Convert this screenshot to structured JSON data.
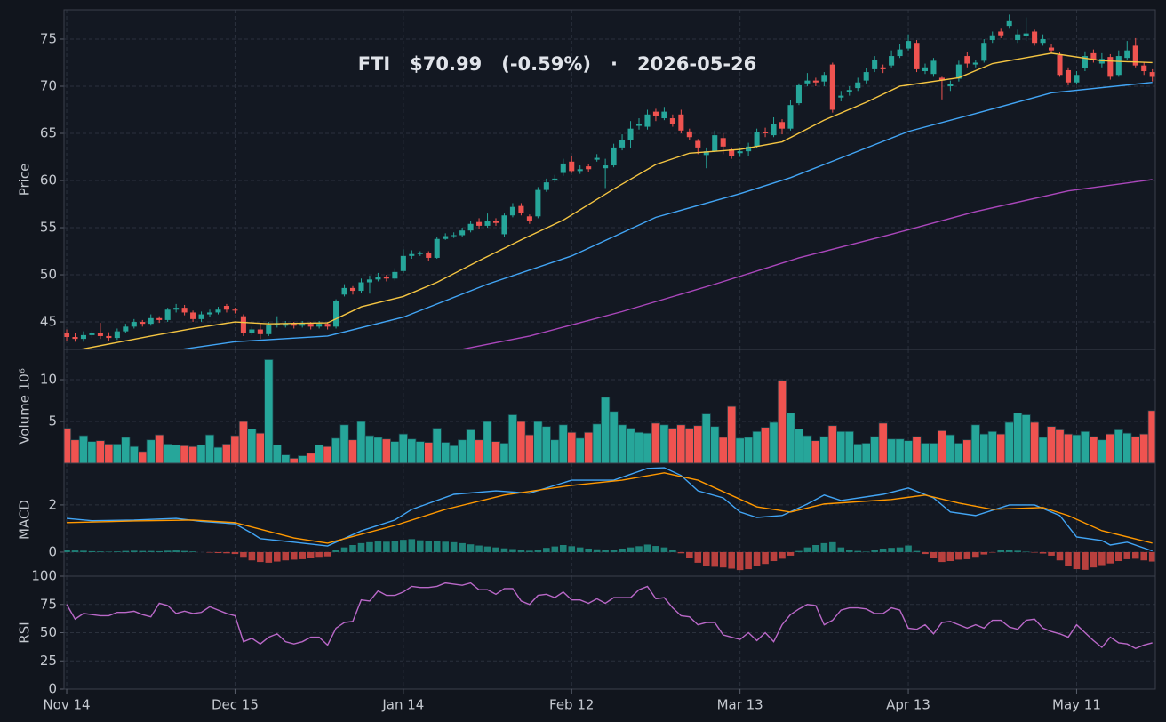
{
  "chart_data": [
    {
      "type": "candlestick",
      "title": [
        "FTI",
        "$70.99",
        "(-0.59%)",
        "·",
        "2026-05-26"
      ],
      "ylabel": "Price",
      "ylim": [
        42.08,
        78.11
      ],
      "yticks": [
        45,
        50,
        55,
        60,
        65,
        70,
        75
      ],
      "grid": true,
      "up_color": "#26a69a",
      "down_color": "#ef5350",
      "open": [
        43.8,
        43.4,
        43.2,
        43.6,
        43.8,
        43.5,
        43.3,
        44.0,
        44.5,
        45.0,
        44.8,
        45.4,
        45.2,
        46.3,
        46.5,
        46.0,
        45.3,
        45.8,
        46.0,
        46.7,
        46.3,
        45.6,
        43.8,
        44.2,
        43.7,
        44.7,
        44.6,
        44.8,
        44.6,
        44.8,
        44.5,
        44.8,
        44.5,
        47.9,
        48.6,
        48.3,
        49.2,
        49.5,
        49.8,
        49.6,
        50.4,
        52.0,
        52.2,
        52.3,
        51.8,
        53.8,
        54.1,
        54.2,
        54.7,
        55.6,
        55.2,
        55.7,
        54.3,
        56.3,
        57.3,
        56.2,
        56.2,
        59.0,
        60.0,
        60.8,
        62.0,
        61.0,
        61.5,
        62.2,
        61.3,
        61.6,
        63.5,
        64.3,
        65.8,
        65.7,
        67.3,
        66.6,
        66.6,
        67.0,
        65.2,
        64.2,
        62.7,
        63.1,
        64.5,
        63.3,
        62.9,
        63.1,
        63.6,
        65.1,
        64.8,
        66.2,
        65.5,
        68.2,
        70.3,
        70.6,
        70.5,
        72.3,
        68.8,
        69.4,
        69.8,
        70.6,
        71.8,
        72.0,
        72.2,
        73.2,
        74.0,
        74.6,
        71.6,
        71.3,
        70.9,
        70.0,
        70.8,
        73.2,
        72.3,
        72.7,
        74.9,
        75.8,
        76.4,
        74.9,
        75.3,
        75.8,
        74.6,
        74.1,
        73.3,
        71.7,
        70.4,
        71.9,
        73.5,
        72.4,
        73.1,
        71.2,
        73.0,
        74.3,
        72.2,
        71.5
      ],
      "high": [
        44.2,
        43.8,
        44.0,
        44.1,
        44.9,
        43.9,
        44.3,
        44.8,
        45.3,
        45.2,
        45.8,
        45.6,
        46.5,
        46.9,
        46.8,
        46.2,
        46.1,
        46.3,
        46.6,
        46.9,
        46.5,
        45.8,
        44.5,
        44.8,
        45.0,
        45.6,
        45.1,
        45.0,
        45.1,
        45.0,
        45.1,
        45.0,
        47.4,
        49.0,
        48.8,
        49.6,
        49.9,
        50.2,
        50.0,
        50.7,
        52.7,
        52.6,
        52.5,
        52.5,
        54.0,
        54.4,
        54.5,
        55.0,
        55.7,
        56.0,
        56.5,
        56.0,
        56.5,
        57.6,
        57.6,
        56.4,
        59.3,
        60.2,
        60.6,
        62.3,
        62.6,
        61.6,
        61.7,
        62.8,
        62.3,
        63.9,
        64.9,
        66.3,
        66.6,
        67.5,
        67.6,
        67.8,
        67.0,
        67.5,
        65.5,
        64.4,
        63.5,
        65.3,
        65.0,
        63.5,
        63.5,
        64.0,
        65.5,
        65.6,
        66.7,
        66.5,
        68.5,
        70.3,
        71.4,
        70.9,
        71.5,
        72.5,
        69.5,
        70.0,
        70.9,
        71.9,
        73.2,
        72.3,
        73.8,
        74.5,
        75.5,
        74.9,
        72.4,
        73.0,
        71.0,
        70.6,
        72.7,
        73.6,
        72.8,
        75.0,
        75.8,
        76.1,
        77.6,
        76.0,
        77.3,
        76.0,
        75.5,
        74.5,
        73.6,
        72.0,
        71.6,
        73.7,
        73.9,
        73.5,
        73.4,
        73.8,
        74.8,
        75.1,
        72.5,
        71.8
      ],
      "low": [
        43.0,
        42.9,
        42.9,
        43.3,
        43.2,
        43.0,
        43.1,
        43.8,
        44.3,
        44.5,
        44.6,
        44.9,
        45.0,
        46.0,
        45.7,
        45.0,
        45.0,
        45.5,
        45.8,
        46.0,
        45.9,
        43.5,
        43.6,
        43.2,
        43.5,
        44.4,
        44.4,
        44.3,
        44.4,
        44.2,
        44.3,
        44.2,
        44.3,
        47.7,
        47.9,
        48.1,
        48.0,
        49.3,
        49.3,
        49.4,
        50.2,
        51.7,
        52.0,
        51.5,
        51.7,
        53.7,
        53.9,
        54.0,
        54.5,
        54.9,
        55.0,
        55.2,
        54.0,
        56.1,
        56.3,
        55.4,
        56.0,
        58.8,
        59.8,
        60.5,
        60.8,
        60.7,
        60.9,
        62.0,
        59.2,
        61.4,
        63.2,
        63.4,
        65.4,
        65.4,
        66.3,
        66.4,
        65.7,
        65.0,
        64.3,
        62.8,
        61.3,
        63.0,
        62.8,
        62.3,
        62.5,
        62.6,
        63.4,
        64.6,
        64.6,
        64.9,
        65.3,
        68.0,
        70.0,
        70.0,
        70.0,
        67.2,
        68.4,
        69.0,
        69.5,
        70.3,
        71.5,
        71.4,
        72.0,
        73.0,
        73.8,
        71.5,
        71.3,
        71.0,
        68.6,
        69.5,
        70.5,
        72.0,
        72.0,
        72.5,
        74.6,
        75.1,
        76.1,
        74.6,
        74.8,
        74.3,
        74.3,
        73.5,
        71.0,
        70.1,
        70.2,
        71.6,
        72.5,
        72.0,
        70.7,
        71.0,
        72.8,
        72.0,
        71.2,
        70.5
      ],
      "close": [
        43.4,
        43.2,
        43.6,
        43.8,
        43.5,
        43.3,
        44.0,
        44.5,
        45.0,
        44.8,
        45.4,
        45.2,
        46.3,
        46.5,
        46.0,
        45.3,
        45.8,
        46.0,
        46.3,
        46.3,
        46.2,
        43.8,
        44.2,
        43.7,
        44.7,
        44.8,
        44.8,
        44.6,
        44.8,
        44.5,
        44.8,
        44.5,
        47.2,
        48.6,
        48.3,
        49.2,
        49.5,
        49.8,
        49.6,
        50.3,
        52.0,
        52.2,
        52.3,
        51.8,
        53.8,
        54.1,
        54.2,
        54.7,
        55.4,
        55.2,
        55.7,
        55.5,
        56.3,
        57.2,
        56.6,
        55.7,
        59.0,
        59.8,
        60.2,
        61.8,
        61.0,
        61.2,
        61.2,
        62.4,
        61.6,
        63.5,
        64.3,
        65.5,
        66.0,
        67.0,
        66.8,
        67.3,
        66.0,
        65.3,
        64.6,
        63.5,
        63.1,
        64.8,
        63.6,
        62.6,
        63.1,
        63.6,
        65.1,
        65.0,
        66.0,
        65.5,
        68.0,
        70.1,
        70.6,
        70.4,
        71.2,
        67.5,
        69.0,
        69.6,
        70.4,
        71.5,
        72.8,
        71.8,
        73.2,
        73.9,
        74.8,
        71.8,
        72.0,
        72.7,
        70.6,
        70.2,
        72.3,
        72.4,
        72.5,
        74.6,
        75.4,
        75.4,
        76.9,
        75.5,
        75.6,
        74.6,
        75.0,
        73.8,
        71.2,
        70.4,
        71.2,
        73.2,
        72.8,
        72.9,
        71.0,
        73.2,
        73.8,
        72.2,
        71.6,
        70.99
      ],
      "series": [
        {
          "color": "#f5c542",
          "x": [
            0,
            10,
            15,
            20,
            24,
            31,
            35,
            40,
            44,
            49,
            54,
            59,
            65,
            70,
            74,
            80,
            85,
            90,
            95,
            99,
            106,
            110,
            117,
            123,
            129
          ],
          "values": [
            41.8,
            43.5,
            44.3,
            45.0,
            44.8,
            44.9,
            46.6,
            47.7,
            49.2,
            51.5,
            53.7,
            55.8,
            59.1,
            61.7,
            62.9,
            63.3,
            64.1,
            66.4,
            68.3,
            70.0,
            70.9,
            72.4,
            73.5,
            72.7,
            72.5
          ]
        },
        {
          "color": "#42a5f5",
          "x": [
            13,
            20,
            31,
            40,
            50,
            60,
            70,
            80,
            86,
            90,
            100,
            108,
            117,
            129
          ],
          "values": [
            42.0,
            42.9,
            43.5,
            45.5,
            49.0,
            52.0,
            56.1,
            58.6,
            60.3,
            61.7,
            65.2,
            67.1,
            69.3,
            70.4
          ]
        },
        {
          "color": "#ab47bc",
          "x": [
            47,
            55,
            66,
            77,
            87,
            98,
            108,
            119,
            129
          ],
          "values": [
            42.1,
            43.5,
            46.1,
            49.0,
            51.8,
            54.3,
            56.7,
            58.9,
            60.1
          ]
        }
      ]
    },
    {
      "type": "bar",
      "ylabel": "Volume  10⁶",
      "ylim": [
        0,
        13.62
      ],
      "yticks": [
        5,
        10
      ],
      "grid": true,
      "up_color": "#26a69a",
      "down_color": "#ef5350",
      "values": [
        4.2,
        2.8,
        3.3,
        2.6,
        2.7,
        2.3,
        2.3,
        3.1,
        2.0,
        1.4,
        2.8,
        3.4,
        2.3,
        2.2,
        2.1,
        2.0,
        2.2,
        3.4,
        1.9,
        2.3,
        3.3,
        5.0,
        4.1,
        3.6,
        12.4,
        2.2,
        1.0,
        0.6,
        0.9,
        1.2,
        2.2,
        2.0,
        3.0,
        4.6,
        2.8,
        5.0,
        3.3,
        3.1,
        2.9,
        2.6,
        3.5,
        2.9,
        2.6,
        2.5,
        4.2,
        2.5,
        2.1,
        2.8,
        4.0,
        2.8,
        5.0,
        2.6,
        2.4,
        5.8,
        5.0,
        3.4,
        5.0,
        4.4,
        2.8,
        4.6,
        3.7,
        3.0,
        3.7,
        4.7,
        7.9,
        6.2,
        4.6,
        4.2,
        3.7,
        3.6,
        4.8,
        4.6,
        4.2,
        4.6,
        4.2,
        4.5,
        5.9,
        4.4,
        3.1,
        6.8,
        3.0,
        3.1,
        3.8,
        4.3,
        4.9,
        9.9,
        6.0,
        4.1,
        3.3,
        2.7,
        3.2,
        4.5,
        3.8,
        3.8,
        2.3,
        2.4,
        3.2,
        4.8,
        2.9,
        2.9,
        2.7,
        3.2,
        2.4,
        2.4,
        3.9,
        3.4,
        2.4,
        2.8,
        4.6,
        3.5,
        3.8,
        3.5,
        4.9,
        6.0,
        5.8,
        4.9,
        3.1,
        4.4,
        4.0,
        3.5,
        3.4,
        3.8,
        3.2,
        2.8,
        3.5,
        4.0,
        3.6,
        3.2,
        3.5,
        6.3
      ]
    },
    {
      "type": "macd",
      "ylabel": "MACD",
      "ylim": [
        -1.02,
        3.77
      ],
      "yticks": [
        0,
        2
      ],
      "grid": true,
      "histogram": {
        "up_color": "#1f8178",
        "down_color": "#b8403e",
        "values": [
          0.1,
          0.07,
          0.06,
          0.04,
          0.03,
          0.02,
          0.03,
          0.05,
          0.06,
          0.05,
          0.05,
          0.04,
          0.06,
          0.07,
          0.05,
          0.03,
          0,
          -0.02,
          -0.04,
          -0.05,
          -0.08,
          -0.2,
          -0.35,
          -0.42,
          -0.45,
          -0.4,
          -0.35,
          -0.32,
          -0.3,
          -0.25,
          -0.2,
          -0.18,
          0.1,
          0.2,
          0.3,
          0.38,
          0.42,
          0.45,
          0.44,
          0.46,
          0.52,
          0.55,
          0.5,
          0.48,
          0.46,
          0.44,
          0.42,
          0.38,
          0.33,
          0.28,
          0.24,
          0.2,
          0.16,
          0.13,
          0.1,
          0.06,
          0.1,
          0.18,
          0.24,
          0.3,
          0.25,
          0.2,
          0.15,
          0.12,
          0.08,
          0.1,
          0.15,
          0.2,
          0.25,
          0.32,
          0.26,
          0.2,
          0.1,
          -0.05,
          -0.25,
          -0.45,
          -0.58,
          -0.62,
          -0.65,
          -0.7,
          -0.76,
          -0.72,
          -0.6,
          -0.5,
          -0.38,
          -0.28,
          -0.15,
          0.05,
          0.2,
          0.3,
          0.38,
          0.42,
          0.2,
          0.1,
          0.05,
          0.02,
          0.08,
          0.15,
          0.18,
          0.2,
          0.28,
          0.05,
          -0.08,
          -0.25,
          -0.42,
          -0.38,
          -0.32,
          -0.3,
          -0.2,
          -0.1,
          -0.02,
          0.1,
          0.08,
          0.06,
          0.02,
          -0.02,
          -0.06,
          -0.15,
          -0.35,
          -0.6,
          -0.72,
          -0.75,
          -0.65,
          -0.55,
          -0.48,
          -0.38,
          -0.3,
          -0.28,
          -0.35,
          -0.4
        ]
      },
      "series": [
        {
          "color": "#42a5f5",
          "x": [
            0,
            3,
            8,
            13,
            16,
            20,
            22,
            23,
            27,
            31,
            35,
            39,
            41,
            46,
            51,
            55,
            60,
            65,
            69,
            71,
            73,
            75,
            78,
            80,
            82,
            85,
            88,
            90,
            92,
            97,
            100,
            103,
            105,
            108,
            112,
            115,
            118,
            120,
            123,
            124,
            126,
            129
          ],
          "values": [
            1.43,
            1.33,
            1.36,
            1.43,
            1.3,
            1.2,
            0.8,
            0.57,
            0.42,
            0.26,
            0.9,
            1.36,
            1.81,
            2.45,
            2.6,
            2.5,
            3.05,
            3.05,
            3.55,
            3.58,
            3.25,
            2.6,
            2.3,
            1.7,
            1.47,
            1.55,
            2.04,
            2.42,
            2.19,
            2.45,
            2.72,
            2.3,
            1.7,
            1.55,
            2.0,
            2.0,
            1.55,
            0.64,
            0.49,
            0.3,
            0.42,
            0.05
          ]
        },
        {
          "color": "#ff9800",
          "x": [
            0,
            8,
            15,
            20,
            27,
            31,
            39,
            45,
            52,
            60,
            66,
            71,
            75,
            82,
            86,
            90,
            98,
            102,
            106,
            110,
            116,
            119,
            123,
            129
          ],
          "values": [
            1.25,
            1.32,
            1.36,
            1.25,
            0.6,
            0.38,
            1.13,
            1.81,
            2.42,
            2.83,
            3.05,
            3.36,
            3.05,
            1.92,
            1.7,
            2.04,
            2.23,
            2.42,
            2.08,
            1.81,
            1.89,
            1.55,
            0.91,
            0.38
          ]
        }
      ]
    },
    {
      "type": "line",
      "ylabel": "RSI",
      "ylim": [
        0,
        100
      ],
      "yticks": [
        0,
        25,
        50,
        75,
        100
      ],
      "grid": true,
      "xlim": [
        -0.32,
        129.35
      ],
      "xticks": [
        {
          "value": 0,
          "label": "Nov 14"
        },
        {
          "value": 20,
          "label": "Dec 15"
        },
        {
          "value": 40,
          "label": "Jan 14"
        },
        {
          "value": 60,
          "label": "Feb 12"
        },
        {
          "value": 80,
          "label": "Mar 13"
        },
        {
          "value": 100,
          "label": "Apr 13"
        },
        {
          "value": 120,
          "label": "May 11"
        }
      ],
      "series": [
        {
          "color": "#ba68c8",
          "values": [
            75,
            62,
            67,
            66,
            65,
            65,
            68,
            68,
            69,
            66,
            64,
            76,
            74,
            67,
            69,
            67,
            68,
            73,
            70,
            67,
            65,
            42,
            45,
            40,
            46,
            49,
            42,
            40,
            42,
            46,
            46,
            39,
            54,
            59,
            60,
            79,
            78,
            87,
            83,
            83,
            86,
            91,
            90,
            90,
            91,
            94,
            93,
            92,
            94,
            88,
            88,
            84,
            89,
            89,
            78,
            75,
            83,
            84,
            81,
            86,
            79,
            79,
            76,
            80,
            76,
            81,
            81,
            81,
            88,
            91,
            80,
            81,
            72,
            65,
            64,
            57,
            59,
            59,
            48,
            46,
            44,
            50,
            43,
            50,
            42,
            57,
            66,
            71,
            75,
            74,
            57,
            61,
            70,
            72,
            72,
            71,
            67,
            67,
            72,
            70,
            54,
            53,
            57,
            49,
            59,
            60,
            57,
            54,
            57,
            54,
            61,
            61,
            55,
            53,
            61,
            62,
            54,
            51,
            49,
            46,
            57,
            50,
            43,
            37,
            46,
            41,
            40,
            36,
            39,
            41
          ]
        }
      ]
    }
  ]
}
